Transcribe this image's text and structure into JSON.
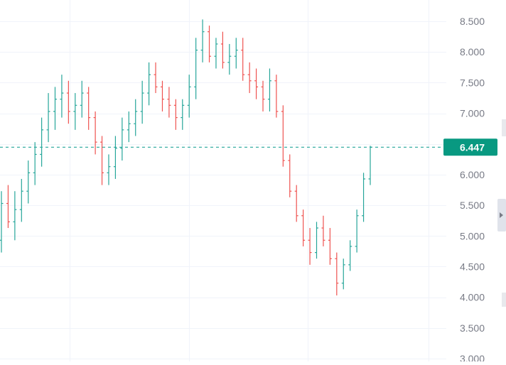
{
  "chart_data": {
    "type": "ohlc",
    "ylim": [
      3.0,
      8.6
    ],
    "y_ticks": [
      "8.500",
      "8.000",
      "7.500",
      "7.000",
      "6.000",
      "5.500",
      "5.000",
      "4.500",
      "4.000",
      "3.500",
      "3.000"
    ],
    "grid": true,
    "last_price": {
      "value": 6.447,
      "label": "6.447"
    },
    "colors": {
      "up": "#26a69a",
      "down": "#ef5350",
      "grid": "#f0f3fa",
      "axis_text": "#787b86",
      "price_line": "#26a69a",
      "price_tag_bg": "#089981",
      "price_tag_text": "#ffffff",
      "scroll_handle": "#d1d4dc"
    },
    "series": [
      {
        "values": [
          [
            4.93,
            5.73,
            4.73,
            5.53
          ],
          [
            5.53,
            5.83,
            5.13,
            5.23
          ],
          [
            5.23,
            5.73,
            4.93,
            5.43
          ],
          [
            5.43,
            5.93,
            5.23,
            5.73
          ],
          [
            5.73,
            6.23,
            5.53,
            6.03
          ],
          [
            6.03,
            6.53,
            5.83,
            6.33
          ],
          [
            6.33,
            6.93,
            6.13,
            6.73
          ],
          [
            6.73,
            7.33,
            6.53,
            7.03
          ],
          [
            7.03,
            7.43,
            6.73,
            7.23
          ],
          [
            7.23,
            7.63,
            6.93,
            7.33
          ],
          [
            7.33,
            7.53,
            6.83,
            7.03
          ],
          [
            7.03,
            7.33,
            6.73,
            7.13
          ],
          [
            7.13,
            7.53,
            6.93,
            7.33
          ],
          [
            7.33,
            7.43,
            6.73,
            6.93
          ],
          [
            6.93,
            7.03,
            6.33,
            6.53
          ],
          [
            6.53,
            6.63,
            5.83,
            6.03
          ],
          [
            6.03,
            6.33,
            5.83,
            6.13
          ],
          [
            6.13,
            6.63,
            5.93,
            6.43
          ],
          [
            6.43,
            6.93,
            6.23,
            6.73
          ],
          [
            6.73,
            7.03,
            6.53,
            6.83
          ],
          [
            6.83,
            7.23,
            6.63,
            7.03
          ],
          [
            7.03,
            7.53,
            6.83,
            7.33
          ],
          [
            7.33,
            7.83,
            7.13,
            7.63
          ],
          [
            7.63,
            7.83,
            7.33,
            7.43
          ],
          [
            7.43,
            7.53,
            7.03,
            7.23
          ],
          [
            7.23,
            7.43,
            6.93,
            7.13
          ],
          [
            7.13,
            7.23,
            6.73,
            6.93
          ],
          [
            6.93,
            7.23,
            6.73,
            7.13
          ],
          [
            7.13,
            7.63,
            6.93,
            7.43
          ],
          [
            7.43,
            8.23,
            7.23,
            8.03
          ],
          [
            8.03,
            8.53,
            7.83,
            8.33
          ],
          [
            8.33,
            8.43,
            7.83,
            7.93
          ],
          [
            7.93,
            8.23,
            7.73,
            8.13
          ],
          [
            8.13,
            8.33,
            7.73,
            7.83
          ],
          [
            7.83,
            8.13,
            7.63,
            7.93
          ],
          [
            7.93,
            8.23,
            7.73,
            8.03
          ],
          [
            8.03,
            8.23,
            7.53,
            7.63
          ],
          [
            7.63,
            7.83,
            7.33,
            7.53
          ],
          [
            7.53,
            7.73,
            7.23,
            7.43
          ],
          [
            7.43,
            7.53,
            7.03,
            7.23
          ],
          [
            7.23,
            7.73,
            7.03,
            7.53
          ],
          [
            7.53,
            7.63,
            6.93,
            7.03
          ],
          [
            7.03,
            7.13,
            6.13,
            6.23
          ],
          [
            6.23,
            6.33,
            5.63,
            5.73
          ],
          [
            5.73,
            5.83,
            5.23,
            5.33
          ],
          [
            5.33,
            5.43,
            4.83,
            4.93
          ],
          [
            4.93,
            5.13,
            4.53,
            4.73
          ],
          [
            4.73,
            5.23,
            4.63,
            5.13
          ],
          [
            5.13,
            5.33,
            4.83,
            4.93
          ],
          [
            4.93,
            5.13,
            4.53,
            4.63
          ],
          [
            4.63,
            4.73,
            4.03,
            4.23
          ],
          [
            4.23,
            4.63,
            4.13,
            4.53
          ],
          [
            4.53,
            4.93,
            4.43,
            4.83
          ],
          [
            4.83,
            5.43,
            4.73,
            5.33
          ],
          [
            5.33,
            6.03,
            5.23,
            5.93
          ],
          [
            5.93,
            6.47,
            5.83,
            6.447
          ]
        ]
      }
    ]
  }
}
